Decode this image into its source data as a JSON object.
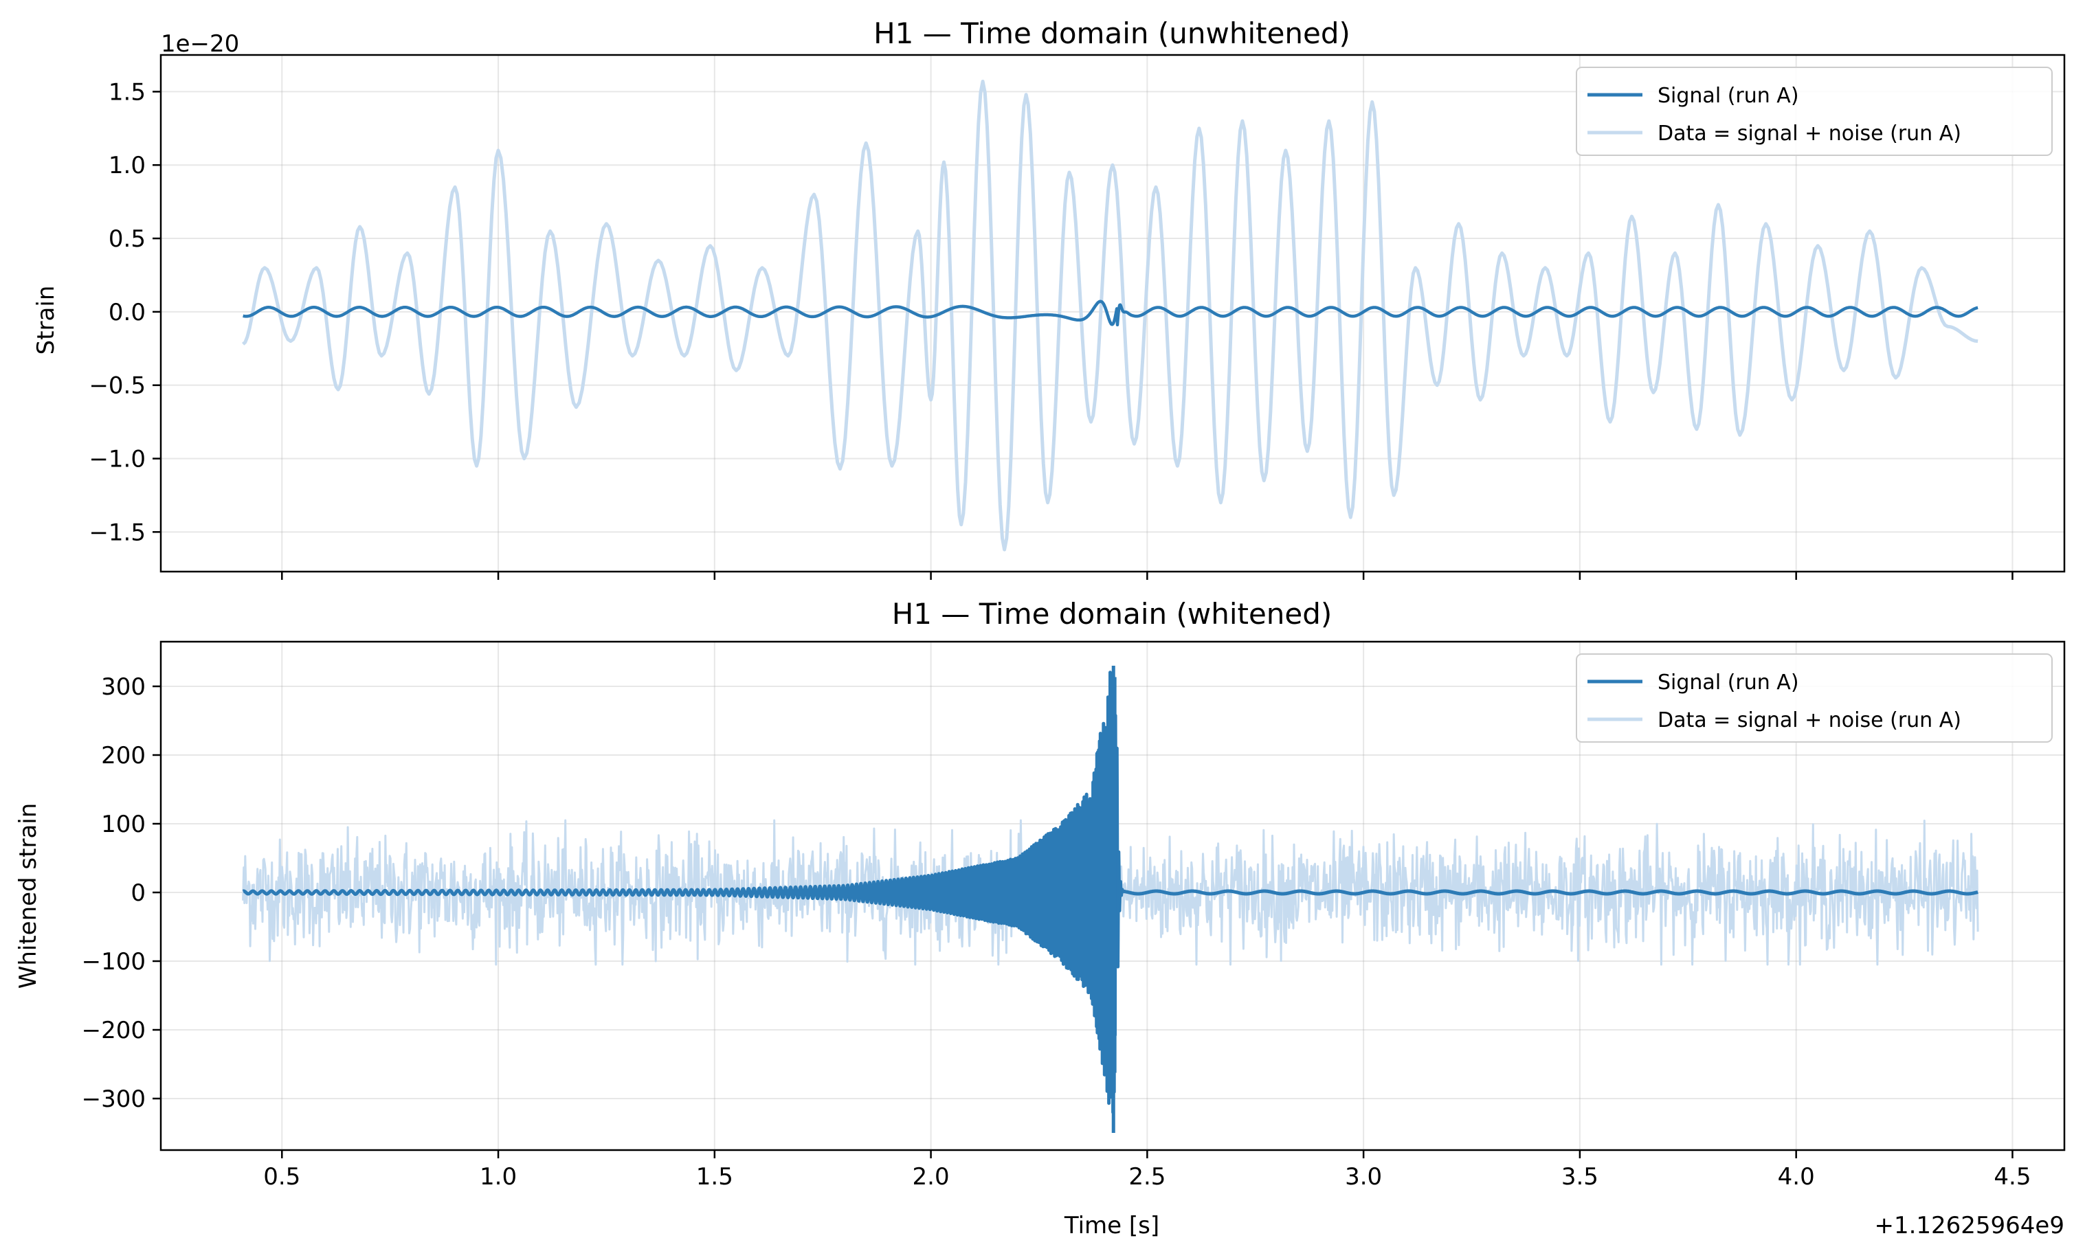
{
  "chart_data": [
    {
      "type": "line",
      "title": "H1 — Time domain (unwhitened)",
      "xlabel": "",
      "ylabel": "Strain",
      "y_scale_label": "1e−20",
      "xlim": [
        0.22,
        4.62
      ],
      "ylim": [
        -1.77,
        1.75
      ],
      "x_ticks": [
        0.5,
        1.0,
        1.5,
        2.0,
        2.5,
        3.0,
        3.5,
        4.0,
        4.5
      ],
      "x_tick_labels_visible": false,
      "y_ticks": [
        1.5,
        1.0,
        0.5,
        0.0,
        -0.5,
        -1.0,
        -1.5
      ],
      "y_tick_labels": [
        "1.5",
        "1.0",
        "0.5",
        "0.0",
        "−0.5",
        "−1.0",
        "−1.5"
      ],
      "grid": true,
      "legend_position": "top-right",
      "legend": [
        "Signal (run A)",
        "Data = signal + noise (run A)"
      ],
      "x_range_data": [
        0.41,
        4.42
      ],
      "series": [
        {
          "name": "Signal (run A)",
          "color": "#2c7bb6",
          "description_points": [
            {
              "x": 0.41,
              "y": -0.02
            },
            {
              "x": 1.0,
              "y": 0.03
            },
            {
              "x": 2.0,
              "y": 0.04
            },
            {
              "x": 2.3,
              "y": 0.06
            },
            {
              "x": 2.42,
              "y": 0.1
            },
            {
              "x": 2.43,
              "y": -0.13
            },
            {
              "x": 3.0,
              "y": 0.02
            },
            {
              "x": 4.42,
              "y": -0.02
            }
          ]
        },
        {
          "name": "Data = signal + noise (run A)",
          "color": "#c6dbef",
          "points": [
            {
              "x": 0.41,
              "y": -0.22
            },
            {
              "x": 0.46,
              "y": 0.3
            },
            {
              "x": 0.52,
              "y": -0.2
            },
            {
              "x": 0.58,
              "y": 0.3
            },
            {
              "x": 0.63,
              "y": -0.53
            },
            {
              "x": 0.68,
              "y": 0.58
            },
            {
              "x": 0.73,
              "y": -0.3
            },
            {
              "x": 0.79,
              "y": 0.4
            },
            {
              "x": 0.84,
              "y": -0.56
            },
            {
              "x": 0.9,
              "y": 0.85
            },
            {
              "x": 0.95,
              "y": -1.05
            },
            {
              "x": 1.0,
              "y": 1.1
            },
            {
              "x": 1.06,
              "y": -1.0
            },
            {
              "x": 1.12,
              "y": 0.55
            },
            {
              "x": 1.18,
              "y": -0.65
            },
            {
              "x": 1.25,
              "y": 0.6
            },
            {
              "x": 1.31,
              "y": -0.3
            },
            {
              "x": 1.37,
              "y": 0.35
            },
            {
              "x": 1.43,
              "y": -0.3
            },
            {
              "x": 1.49,
              "y": 0.45
            },
            {
              "x": 1.55,
              "y": -0.4
            },
            {
              "x": 1.61,
              "y": 0.3
            },
            {
              "x": 1.67,
              "y": -0.3
            },
            {
              "x": 1.73,
              "y": 0.8
            },
            {
              "x": 1.79,
              "y": -1.07
            },
            {
              "x": 1.85,
              "y": 1.15
            },
            {
              "x": 1.91,
              "y": -1.05
            },
            {
              "x": 1.97,
              "y": 0.55
            },
            {
              "x": 2.0,
              "y": -0.6
            },
            {
              "x": 2.03,
              "y": 1.02
            },
            {
              "x": 2.07,
              "y": -1.45
            },
            {
              "x": 2.12,
              "y": 1.57
            },
            {
              "x": 2.17,
              "y": -1.62
            },
            {
              "x": 2.22,
              "y": 1.48
            },
            {
              "x": 2.27,
              "y": -1.3
            },
            {
              "x": 2.32,
              "y": 0.95
            },
            {
              "x": 2.37,
              "y": -0.75
            },
            {
              "x": 2.42,
              "y": 1.0
            },
            {
              "x": 2.47,
              "y": -0.9
            },
            {
              "x": 2.52,
              "y": 0.85
            },
            {
              "x": 2.57,
              "y": -1.05
            },
            {
              "x": 2.62,
              "y": 1.25
            },
            {
              "x": 2.67,
              "y": -1.3
            },
            {
              "x": 2.72,
              "y": 1.3
            },
            {
              "x": 2.77,
              "y": -1.15
            },
            {
              "x": 2.82,
              "y": 1.1
            },
            {
              "x": 2.87,
              "y": -0.95
            },
            {
              "x": 2.92,
              "y": 1.3
            },
            {
              "x": 2.97,
              "y": -1.4
            },
            {
              "x": 3.02,
              "y": 1.43
            },
            {
              "x": 3.07,
              "y": -1.25
            },
            {
              "x": 3.12,
              "y": 0.3
            },
            {
              "x": 3.17,
              "y": -0.5
            },
            {
              "x": 3.22,
              "y": 0.6
            },
            {
              "x": 3.27,
              "y": -0.6
            },
            {
              "x": 3.32,
              "y": 0.4
            },
            {
              "x": 3.37,
              "y": -0.3
            },
            {
              "x": 3.42,
              "y": 0.3
            },
            {
              "x": 3.47,
              "y": -0.3
            },
            {
              "x": 3.52,
              "y": 0.4
            },
            {
              "x": 3.57,
              "y": -0.75
            },
            {
              "x": 3.62,
              "y": 0.65
            },
            {
              "x": 3.67,
              "y": -0.55
            },
            {
              "x": 3.72,
              "y": 0.4
            },
            {
              "x": 3.77,
              "y": -0.8
            },
            {
              "x": 3.82,
              "y": 0.73
            },
            {
              "x": 3.87,
              "y": -0.84
            },
            {
              "x": 3.93,
              "y": 0.6
            },
            {
              "x": 3.99,
              "y": -0.6
            },
            {
              "x": 4.05,
              "y": 0.45
            },
            {
              "x": 4.11,
              "y": -0.4
            },
            {
              "x": 4.17,
              "y": 0.55
            },
            {
              "x": 4.23,
              "y": -0.45
            },
            {
              "x": 4.29,
              "y": 0.3
            },
            {
              "x": 4.35,
              "y": -0.1
            },
            {
              "x": 4.42,
              "y": -0.2
            }
          ]
        }
      ]
    },
    {
      "type": "line",
      "title": "H1 — Time domain (whitened)",
      "xlabel": "Time [s]",
      "ylabel": "Whitened strain",
      "x_offset_label": "+1.12625964e9",
      "xlim": [
        0.22,
        4.62
      ],
      "ylim": [
        -375,
        365
      ],
      "x_ticks": [
        0.5,
        1.0,
        1.5,
        2.0,
        2.5,
        3.0,
        3.5,
        4.0,
        4.5
      ],
      "x_tick_labels": [
        "0.5",
        "1.0",
        "1.5",
        "2.0",
        "2.5",
        "3.0",
        "3.5",
        "4.0",
        "4.5"
      ],
      "y_ticks": [
        300,
        200,
        100,
        0,
        -100,
        -200,
        -300
      ],
      "y_tick_labels": [
        "300",
        "200",
        "100",
        "0",
        "−100",
        "−200",
        "−300"
      ],
      "grid": true,
      "legend_position": "top-right",
      "legend": [
        "Signal (run A)",
        "Data = signal + noise (run A)"
      ],
      "x_range_data": [
        0.41,
        4.42
      ],
      "series": [
        {
          "name": "Signal (run A)",
          "color": "#2c7bb6",
          "envelope": [
            {
              "x": 0.41,
              "amp": 2
            },
            {
              "x": 1.5,
              "amp": 4
            },
            {
              "x": 1.8,
              "amp": 10
            },
            {
              "x": 2.0,
              "amp": 25
            },
            {
              "x": 2.2,
              "amp": 50
            },
            {
              "x": 2.3,
              "amp": 100
            },
            {
              "x": 2.37,
              "amp": 150
            },
            {
              "x": 2.41,
              "amp": 300
            },
            {
              "x": 2.42,
              "amp": 345
            },
            {
              "x": 2.445,
              "amp": 10
            },
            {
              "x": 4.42,
              "amp": 2
            }
          ],
          "peak_max": 330,
          "peak_min": -350
        },
        {
          "name": "Data = signal + noise (run A)",
          "color": "#c6dbef",
          "noise_band": [
            -100,
            100
          ]
        }
      ]
    }
  ]
}
